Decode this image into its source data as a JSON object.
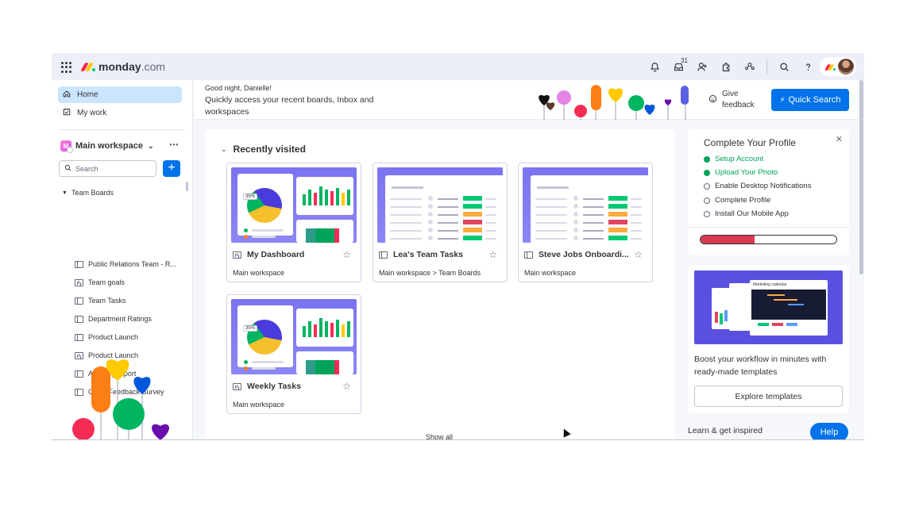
{
  "app": {
    "logo_brand": "monday",
    "logo_suffix": ".com",
    "notifications_count": "31"
  },
  "sidebar": {
    "nav": [
      {
        "label": "Home",
        "icon": "home-icon"
      },
      {
        "label": "My work",
        "icon": "calendar-check-icon"
      }
    ],
    "workspace": {
      "logo_letter": "M",
      "name": "Main workspace"
    },
    "search_placeholder": "Search",
    "folder": "Team Boards",
    "boards": [
      {
        "label": "Public Relations Team - R...",
        "type": "table"
      },
      {
        "label": "Team goals",
        "type": "dash"
      },
      {
        "label": "Team Tasks",
        "type": "table"
      },
      {
        "label": "Department Ratings",
        "type": "table"
      },
      {
        "label": "Product Launch",
        "type": "table"
      },
      {
        "label": "Product Launch",
        "type": "dash"
      },
      {
        "label": "Affiliate_Export",
        "type": "table"
      },
      {
        "label": "Client Feedback Survey",
        "type": "table"
      }
    ]
  },
  "banner": {
    "greeting": "Good night, Danielle!",
    "subtitle": "Quickly access your recent boards, Inbox and workspaces",
    "feedback_label": "Give feedback",
    "quick_search_label": "Quick Search"
  },
  "recent": {
    "heading": "Recently visited",
    "cards": [
      {
        "title": "My Dashboard",
        "path": "Main workspace",
        "type": "dash",
        "thumb_pct": "35%"
      },
      {
        "title": "Lea's Team Tasks",
        "path": "Main workspace > Team Boards",
        "type": "table"
      },
      {
        "title": "Steve Jobs Onboardi...",
        "path": "Main workspace",
        "type": "table"
      },
      {
        "title": "Weekly Tasks",
        "path": "Main workspace",
        "type": "dash",
        "thumb_pct": "35%"
      }
    ],
    "show_all_label": "Show all"
  },
  "profile": {
    "title": "Complete Your Profile",
    "items": [
      {
        "label": "Setup Account",
        "done": true
      },
      {
        "label": "Upload Your Photo",
        "done": true
      },
      {
        "label": "Enable Desktop Notifications",
        "done": false
      },
      {
        "label": "Complete Profile",
        "done": false
      },
      {
        "label": "Install Our Mobile App",
        "done": false
      }
    ],
    "progress": 0.4
  },
  "templates": {
    "image_title": "Marketing calendar",
    "text": "Boost your workflow in minutes with ready-made templates",
    "button_label": "Explore templates"
  },
  "learn_label": "Learn & get inspired",
  "help_label": "Help",
  "colors": {
    "primary": "#0073ea",
    "done": "#00a359",
    "progress": "#d83a52",
    "active_nav": "#cce5ff"
  }
}
